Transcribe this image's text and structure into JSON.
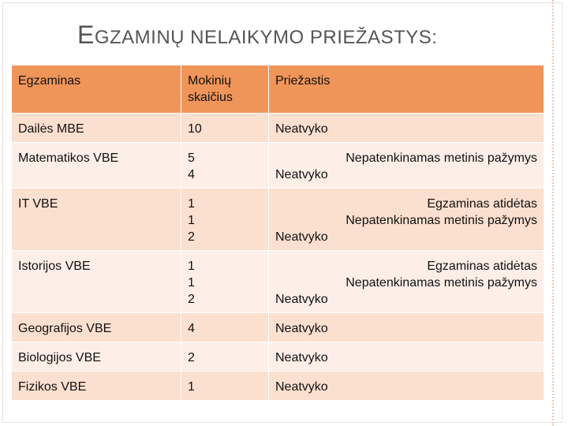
{
  "title": "EGZAMINŲ NELAIKYMO PRIEŽASTYS:",
  "table": {
    "header": [
      [
        "Egzaminas"
      ],
      [
        "Mokinių",
        "skaičius"
      ],
      [
        "Priežastis"
      ]
    ],
    "rows": [
      [
        [
          "Dailės MBE"
        ],
        [
          10
        ],
        [
          "Neatvyko"
        ]
      ],
      [
        [
          "Matematikos VBE"
        ],
        [
          5,
          4
        ],
        [
          "Nepatenkinamas metinis pažymys",
          "Neatvyko"
        ]
      ],
      [
        [
          "IT VBE"
        ],
        [
          1,
          1,
          2
        ],
        [
          "Egzaminas atidėtas",
          "Nepatenkinamas metinis pažymys",
          "Neatvyko"
        ]
      ],
      [
        [
          "Istorijos VBE"
        ],
        [
          1,
          1,
          2
        ],
        [
          "Egzaminas atidėtas",
          "Nepatenkinamas metinis pažymys",
          "Neatvyko"
        ]
      ],
      [
        [
          "Geografijos VBE"
        ],
        [
          4
        ],
        [
          "Neatvyko"
        ]
      ],
      [
        [
          "Biologijos VBE"
        ],
        [
          2
        ],
        [
          "Neatvyko"
        ]
      ],
      [
        [
          "Fizikos VBE"
        ],
        [
          1
        ],
        [
          "Neatvyko"
        ]
      ]
    ]
  }
}
